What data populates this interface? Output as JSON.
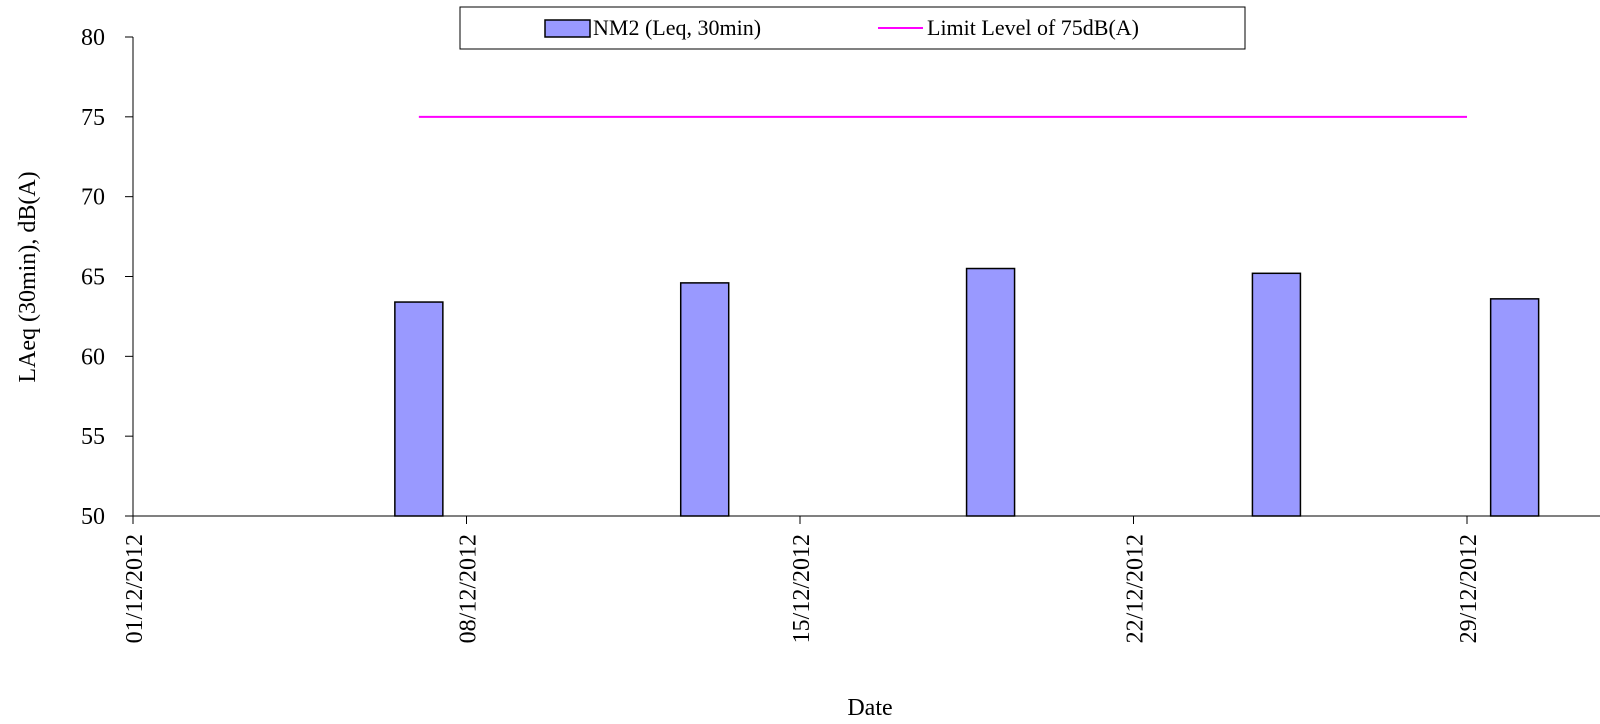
{
  "chart_data": {
    "type": "bar",
    "xlabel": "Date",
    "ylabel": "LAeq (30min), dB(A)",
    "ylim": [
      50,
      80
    ],
    "yticks": [
      "50",
      "55",
      "60",
      "65",
      "70",
      "75",
      "80"
    ],
    "xlim": [
      "2012-12-01",
      "2012-12-29"
    ],
    "xtick_dates": [
      "2012-12-01",
      "2012-12-08",
      "2012-12-15",
      "2012-12-22",
      "2012-12-29"
    ],
    "xticks": [
      "01/12/2012",
      "08/12/2012",
      "15/12/2012",
      "22/12/2012",
      "29/12/2012"
    ],
    "grid": false,
    "legend_position": "top",
    "series": [
      {
        "name": "NM2 (Leq, 30min)",
        "type": "bar",
        "color": "#9999ff",
        "points": [
          {
            "x": "2012-12-07",
            "y": 63.4
          },
          {
            "x": "2012-12-13",
            "y": 64.6
          },
          {
            "x": "2012-12-19",
            "y": 65.5
          },
          {
            "x": "2012-12-25",
            "y": 65.2
          },
          {
            "x": "2012-12-30",
            "y": 63.6
          }
        ]
      },
      {
        "name": "Limit Level of 75dB(A)",
        "type": "line",
        "color": "#ff00ff",
        "points": [
          {
            "x": "2012-12-07",
            "y": 75
          },
          {
            "x": "2012-12-29",
            "y": 75
          }
        ]
      }
    ]
  }
}
